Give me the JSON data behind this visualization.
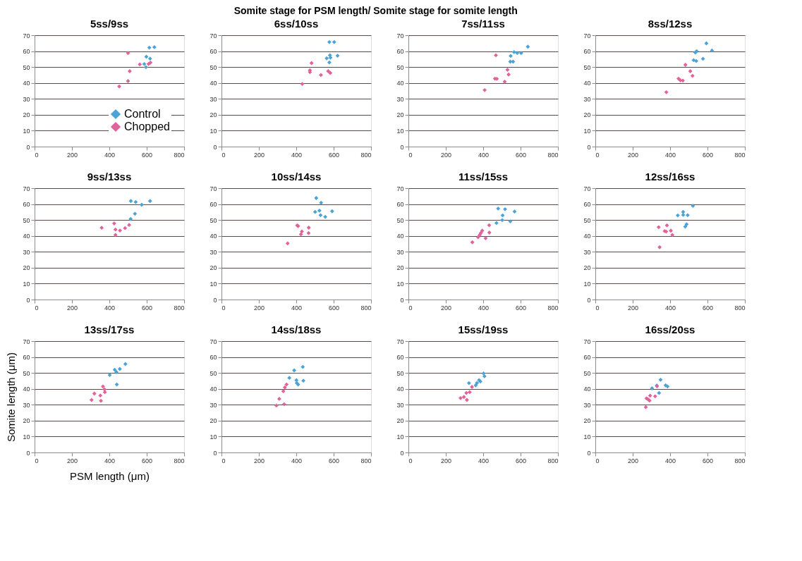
{
  "chart_data": [
    {
      "type": "scatter",
      "title": "5ss/9ss",
      "annotations": [
        "Somite stage for PSM length/ Somite stage for somite length"
      ],
      "legend": "bottom right",
      "marker": "diamond",
      "grid": "y",
      "xlim": [
        0,
        800
      ],
      "xticks": [
        0,
        200,
        400,
        600,
        800
      ],
      "ylim": [
        0,
        70
      ],
      "yticks": [
        0,
        10,
        20,
        30,
        40,
        50,
        60,
        70
      ],
      "series": [
        {
          "name": "Control",
          "color": "#4ba3d8",
          "x": [
            614,
            641,
            598,
            618,
            587,
            596
          ],
          "values": [
            62.2,
            62.5,
            56.5,
            55.3,
            51.9,
            49.9
          ]
        },
        {
          "name": "Chopped",
          "color": "#e2629a",
          "x": [
            500,
            453,
            509,
            500,
            563,
            610,
            620
          ],
          "values": [
            58.8,
            37.8,
            47.4,
            41.2,
            51.7,
            51.9,
            52.8
          ]
        }
      ]
    },
    {
      "type": "scatter",
      "title": "6ss/10ss",
      "marker": "diamond",
      "grid": "y",
      "xlim": [
        0,
        800
      ],
      "xticks": [
        0,
        200,
        400,
        600,
        800
      ],
      "ylim": [
        0,
        70
      ],
      "yticks": [
        0,
        10,
        20,
        30,
        40,
        50,
        60,
        70
      ],
      "series": [
        {
          "color": "#4ba3d8",
          "x": [
            577,
            603,
            563,
            580,
            583,
            577,
            621
          ],
          "values": [
            65.7,
            65.7,
            55.5,
            57.4,
            55.9,
            52.9,
            57.1
          ]
        },
        {
          "color": "#e2629a",
          "x": [
            482,
            473,
            473,
            432,
            532,
            571,
            582
          ],
          "values": [
            52.5,
            48,
            46.8,
            39.4,
            45,
            47.4,
            46.3
          ]
        }
      ]
    },
    {
      "type": "scatter",
      "title": "7ss/11ss",
      "marker": "diamond",
      "grid": "y",
      "xlim": [
        0,
        800
      ],
      "xticks": [
        0,
        200,
        400,
        600,
        800
      ],
      "ylim": [
        0,
        70
      ],
      "yticks": [
        0,
        10,
        20,
        30,
        40,
        50,
        60,
        70
      ],
      "series": [
        {
          "color": "#4ba3d8",
          "x": [
            565,
            582,
            603,
            547,
            545,
            560,
            639
          ],
          "values": [
            59.4,
            58.9,
            58.8,
            57,
            53.4,
            53.4,
            62.8
          ]
        },
        {
          "color": "#e2629a",
          "x": [
            468,
            463,
            473,
            408,
            515,
            530,
            536
          ],
          "values": [
            57.4,
            42.7,
            42.6,
            35.5,
            40.8,
            48.3,
            45.3
          ]
        }
      ]
    },
    {
      "type": "scatter",
      "title": "8ss/12ss",
      "marker": "diamond",
      "grid": "y",
      "xlim": [
        0,
        800
      ],
      "xticks": [
        0,
        200,
        400,
        600,
        800
      ],
      "ylim": [
        0,
        70
      ],
      "yticks": [
        0,
        10,
        20,
        30,
        40,
        50,
        60,
        70
      ],
      "series": [
        {
          "color": "#4ba3d8",
          "x": [
            594,
            624,
            535,
            542,
            526,
            540,
            576
          ],
          "values": [
            64.9,
            60.4,
            59.1,
            60,
            54.3,
            53.8,
            55.2
          ]
        },
        {
          "color": "#e2629a",
          "x": [
            482,
            508,
            520,
            445,
            455,
            468,
            380
          ],
          "values": [
            51.4,
            47.4,
            44.5,
            42.7,
            41.7,
            41.5,
            34.2
          ]
        }
      ]
    },
    {
      "type": "scatter",
      "title": "9ss/13ss",
      "marker": "diamond",
      "grid": "y",
      "xlim": [
        0,
        800
      ],
      "xticks": [
        0,
        200,
        400,
        600,
        800
      ],
      "ylim": [
        0,
        70
      ],
      "yticks": [
        0,
        10,
        20,
        30,
        40,
        50,
        60,
        70
      ],
      "series": [
        {
          "color": "#4ba3d8",
          "x": [
            515,
            541,
            573,
            618,
            537,
            514
          ],
          "values": [
            61.9,
            61.3,
            59.6,
            61.9,
            53.9,
            50.6
          ]
        },
        {
          "color": "#e2629a",
          "x": [
            359,
            426,
            433,
            433,
            457,
            484,
            506
          ],
          "values": [
            45.1,
            47.8,
            44,
            40.6,
            43.4,
            44.9,
            46.9
          ]
        }
      ]
    },
    {
      "type": "scatter",
      "title": "10ss/14ss",
      "marker": "diamond",
      "grid": "y",
      "xlim": [
        0,
        800
      ],
      "xticks": [
        0,
        200,
        400,
        600,
        800
      ],
      "ylim": [
        0,
        70
      ],
      "yticks": [
        0,
        10,
        20,
        30,
        40,
        50,
        60,
        70
      ],
      "series": [
        {
          "color": "#4ba3d8",
          "x": [
            507,
            533,
            501,
            524,
            530,
            555,
            592
          ],
          "values": [
            63.8,
            60.8,
            55.1,
            55.9,
            53,
            52,
            55.5
          ]
        },
        {
          "color": "#e2629a",
          "x": [
            405,
            410,
            430,
            425,
            467,
            466,
            354
          ],
          "values": [
            46.6,
            46.2,
            42.8,
            41,
            45.2,
            41.8,
            35.3
          ]
        }
      ]
    },
    {
      "type": "scatter",
      "title": "11ss/15ss",
      "marker": "diamond",
      "grid": "y",
      "xlim": [
        0,
        800
      ],
      "xticks": [
        0,
        200,
        400,
        600,
        800
      ],
      "ylim": [
        0,
        70
      ],
      "yticks": [
        0,
        10,
        20,
        30,
        40,
        50,
        60,
        70
      ],
      "series": [
        {
          "color": "#4ba3d8",
          "x": [
            480,
            517,
            504,
            502,
            471,
            545,
            568
          ],
          "values": [
            57.2,
            56.8,
            52.9,
            49.9,
            48.1,
            49.1,
            55.3
          ]
        },
        {
          "color": "#e2629a",
          "x": [
            342,
            373,
            382,
            388,
            395,
            413,
            432,
            433
          ],
          "values": [
            36,
            39.2,
            40.7,
            41.9,
            43.3,
            38.5,
            46.7,
            42.1
          ]
        }
      ]
    },
    {
      "type": "scatter",
      "title": "12ss/16ss",
      "marker": "diamond",
      "grid": "y",
      "xlim": [
        0,
        800
      ],
      "xticks": [
        0,
        200,
        400,
        600,
        800
      ],
      "ylim": [
        0,
        70
      ],
      "yticks": [
        0,
        10,
        20,
        30,
        40,
        50,
        60,
        70
      ],
      "series": [
        {
          "color": "#4ba3d8",
          "x": [
            522,
            470,
            441,
            470,
            494,
            488,
            481
          ],
          "values": [
            58.9,
            55.1,
            52.9,
            53.2,
            53,
            47.3,
            45.8
          ]
        },
        {
          "color": "#e2629a",
          "x": [
            339,
            383,
            371,
            379,
            404,
            412,
            344
          ],
          "values": [
            45.5,
            46.6,
            43,
            42.7,
            43.3,
            40.6,
            32.9
          ]
        }
      ]
    },
    {
      "type": "scatter",
      "title": "13ss/17ss",
      "xlabel": "PSM length (μm)",
      "ylabel": "Somite length (μm)",
      "marker": "diamond",
      "grid": "y",
      "xlim": [
        0,
        800
      ],
      "xticks": [
        0,
        200,
        400,
        600,
        800
      ],
      "ylim": [
        0,
        70
      ],
      "yticks": [
        0,
        10,
        20,
        30,
        40,
        50,
        60,
        70
      ],
      "series": [
        {
          "color": "#4ba3d8",
          "x": [
            486,
            456,
            429,
            438,
            402,
            440
          ],
          "values": [
            55.6,
            52.5,
            52,
            50.5,
            48.7,
            42.7
          ]
        },
        {
          "color": "#e2629a",
          "x": [
            305,
            320,
            352,
            355,
            366,
            374,
            376
          ],
          "values": [
            33,
            37,
            35.8,
            32.5,
            41.5,
            39.7,
            37.9
          ]
        }
      ]
    },
    {
      "type": "scatter",
      "title": "14ss/18ss",
      "marker": "diamond",
      "grid": "y",
      "xlim": [
        0,
        800
      ],
      "xticks": [
        0,
        200,
        400,
        600,
        800
      ],
      "ylim": [
        0,
        70
      ],
      "yticks": [
        0,
        10,
        20,
        30,
        40,
        50,
        60,
        70
      ],
      "series": [
        {
          "color": "#4ba3d8",
          "x": [
            389,
            435,
            363,
            401,
            403,
            410,
            438
          ],
          "values": [
            51.6,
            53.8,
            46.9,
            45.4,
            43.6,
            42.7,
            45.1
          ]
        },
        {
          "color": "#e2629a",
          "x": [
            348,
            339,
            331,
            309,
            294,
            335
          ],
          "values": [
            42.7,
            40.9,
            38.5,
            33.7,
            29.5,
            30.3
          ]
        }
      ]
    },
    {
      "type": "scatter",
      "title": "15ss/19ss",
      "marker": "diamond",
      "grid": "y",
      "xlim": [
        0,
        800
      ],
      "xticks": [
        0,
        200,
        400,
        600,
        800
      ],
      "ylim": [
        0,
        70
      ],
      "yticks": [
        0,
        10,
        20,
        30,
        40,
        50,
        60,
        70
      ],
      "series": [
        {
          "color": "#4ba3d8",
          "x": [
            324,
            360,
            367,
            378,
            385,
            402,
            407
          ],
          "values": [
            43.6,
            42.2,
            43.7,
            45.5,
            44.6,
            49.7,
            47.9
          ]
        },
        {
          "color": "#e2629a",
          "x": [
            279,
            297,
            310,
            313,
            328,
            340
          ],
          "values": [
            34.2,
            34.9,
            37.4,
            33,
            37.9,
            41.2
          ]
        }
      ]
    },
    {
      "type": "scatter",
      "title": "16ss/20ss",
      "marker": "diamond",
      "grid": "y",
      "xlim": [
        0,
        800
      ],
      "xticks": [
        0,
        200,
        400,
        600,
        800
      ],
      "ylim": [
        0,
        70
      ],
      "yticks": [
        0,
        10,
        20,
        30,
        40,
        50,
        60,
        70
      ],
      "series": [
        {
          "color": "#4ba3d8",
          "x": [
            349,
            303,
            341,
            376,
            386,
            329
          ],
          "values": [
            45.7,
            40.3,
            37.4,
            42.2,
            41.5,
            42.1
          ]
        },
        {
          "color": "#e2629a",
          "x": [
            270,
            274,
            282,
            290,
            293,
            320,
            330
          ],
          "values": [
            28.5,
            34,
            33.4,
            32.6,
            35.7,
            35.3,
            41.6
          ]
        }
      ]
    }
  ]
}
